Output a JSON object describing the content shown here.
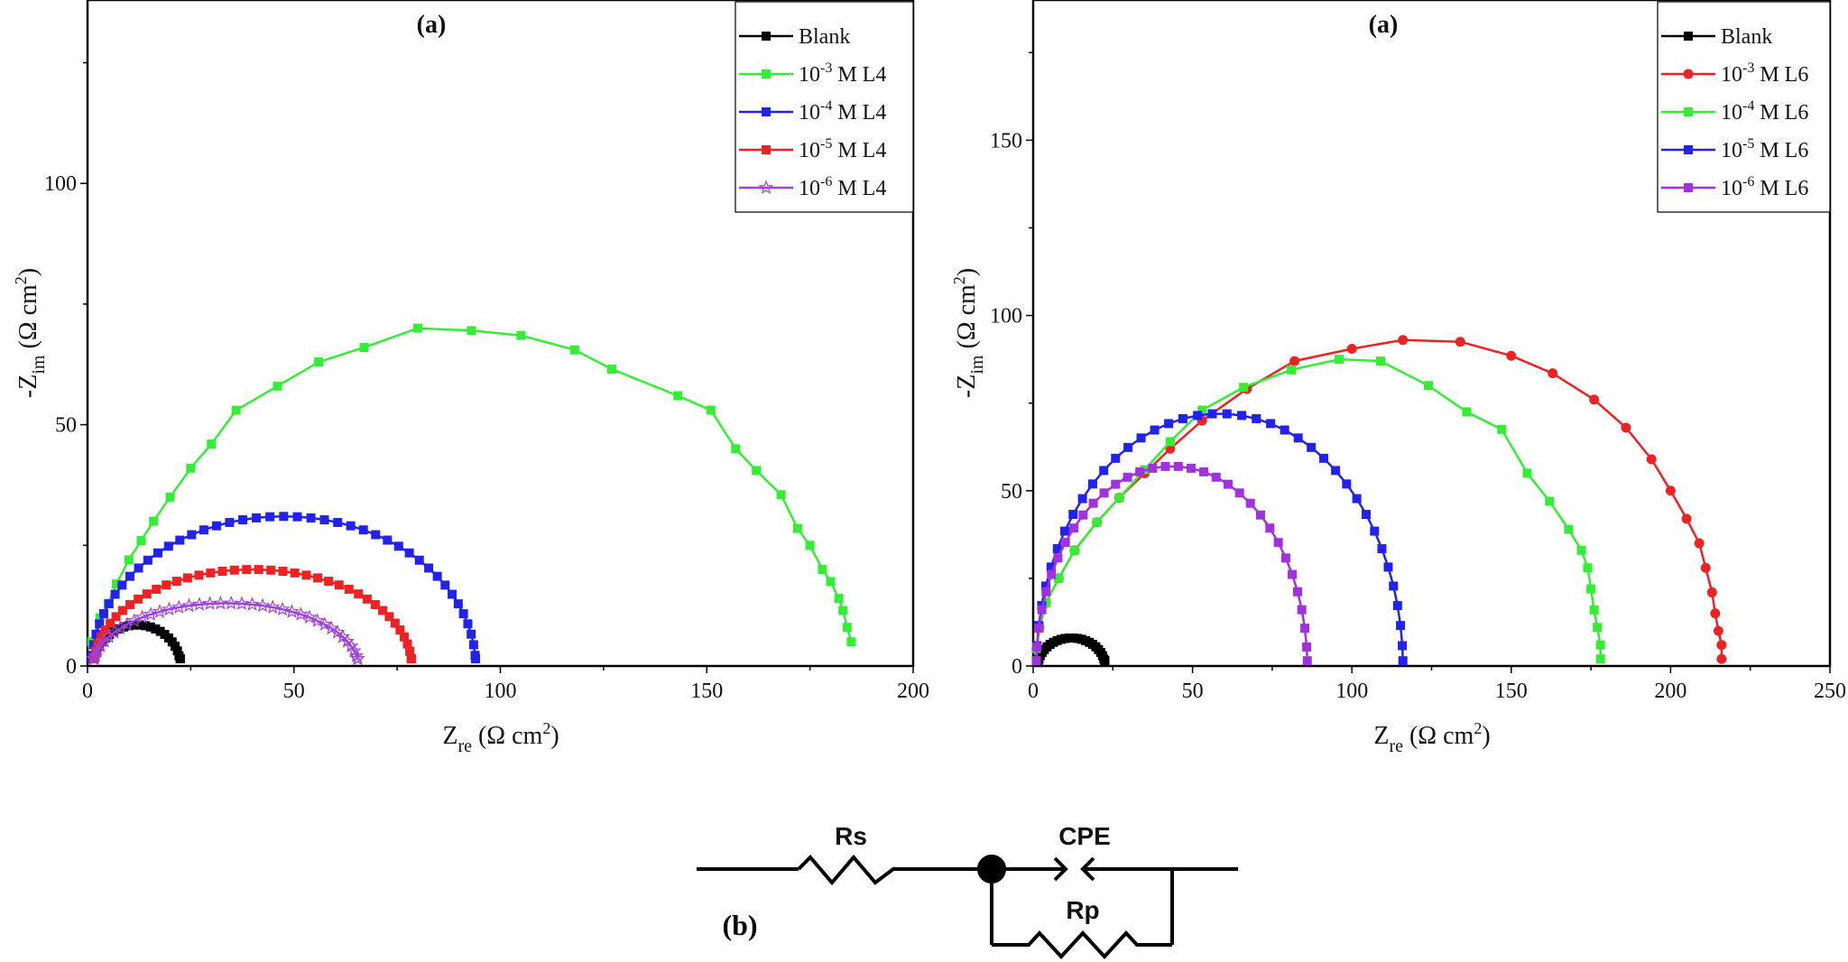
{
  "chart_data": [
    {
      "type": "line",
      "title": "(a)",
      "xlabel": "Z_re (Ω cm²)",
      "ylabel": "-Z_im (Ω cm²)",
      "xlim": [
        0,
        200
      ],
      "ylim": [
        0,
        138
      ],
      "xticks": [
        0,
        50,
        100,
        150,
        200
      ],
      "yticks": [
        0,
        50,
        100
      ],
      "legend_position": "top-right",
      "series": [
        {
          "name": "Blank",
          "color": "#000000",
          "marker": "square",
          "semicircle": {
            "x0": 1.5,
            "r": 10.5,
            "n": 26,
            "peak": 8.5
          }
        },
        {
          "name": "10⁻³ M L4",
          "color": "#33ee33",
          "marker": "square",
          "x": [
            1,
            3,
            5,
            7,
            10,
            13,
            16,
            20,
            25,
            30,
            36,
            46,
            56,
            67,
            80,
            93,
            105,
            118,
            127,
            143,
            151,
            157,
            162,
            168,
            172,
            175,
            178,
            180,
            182,
            183,
            184,
            185
          ],
          "y": [
            5,
            10,
            13,
            17,
            22,
            26,
            30,
            35,
            41,
            46,
            53,
            58,
            63,
            66,
            70,
            69.5,
            68.5,
            65.5,
            61.5,
            56,
            53,
            45,
            40.5,
            35.5,
            28.5,
            25,
            20,
            17.5,
            14,
            11.5,
            8,
            5
          ]
        },
        {
          "name": "10⁻⁴ M L4",
          "color": "#2222ee",
          "marker": "square",
          "semicircle": {
            "x0": 1,
            "r": 46.5,
            "n": 45,
            "peak": 31
          }
        },
        {
          "name": "10⁻⁵ M L4",
          "color": "#ee2222",
          "marker": "square",
          "semicircle": {
            "x0": 1.5,
            "r": 38.5,
            "n": 42,
            "peak": 20
          }
        },
        {
          "name": "10⁻⁶ M L4",
          "color": "#a040e0",
          "marker": "star",
          "semicircle": {
            "x0": 1.5,
            "r": 32,
            "n": 40,
            "peak": 13
          }
        }
      ]
    },
    {
      "type": "line",
      "title": "(a)",
      "xlabel": "Z_re (Ω cm²)",
      "ylabel": "-Z_im (Ω cm²)",
      "xlim": [
        0,
        250
      ],
      "ylim": [
        0,
        190
      ],
      "xticks": [
        0,
        50,
        100,
        150,
        200,
        250
      ],
      "yticks": [
        0,
        50,
        100,
        150
      ],
      "legend_position": "top-right",
      "series": [
        {
          "name": "Blank",
          "color": "#000000",
          "marker": "square",
          "semicircle": {
            "x0": 1.5,
            "r": 10.5,
            "n": 26,
            "peak": 8
          }
        },
        {
          "name": "10⁻³ M L6",
          "color": "#ee2222",
          "marker": "circle",
          "x": [
            1,
            2,
            4,
            8,
            13,
            20,
            27,
            35,
            43,
            53,
            67,
            82,
            100,
            116,
            134,
            150,
            163,
            176,
            186,
            194,
            200,
            205,
            209,
            211,
            213,
            214,
            215,
            216,
            216
          ],
          "y": [
            5,
            11,
            18,
            25,
            33,
            41,
            48,
            55,
            62,
            70,
            79,
            87,
            90.5,
            93,
            92.5,
            88.5,
            83.5,
            76,
            68,
            59,
            50,
            42,
            35,
            28,
            21,
            15,
            10,
            6,
            2
          ]
        },
        {
          "name": "10⁻⁴ M L6",
          "color": "#33ee33",
          "marker": "square",
          "x": [
            1,
            2,
            4,
            8,
            13,
            20,
            27,
            35,
            43,
            53,
            66,
            81,
            96,
            109,
            124,
            136,
            147,
            155,
            162,
            168,
            172,
            174,
            175,
            176,
            177,
            178,
            178
          ],
          "y": [
            5,
            11,
            18,
            25,
            33,
            41,
            48,
            56,
            64,
            73,
            79.5,
            84.5,
            87.5,
            87,
            80,
            72.5,
            67.5,
            55,
            47,
            39,
            33,
            28,
            22,
            16,
            11,
            6,
            2
          ]
        },
        {
          "name": "10⁻⁵ M L6",
          "color": "#2222ee",
          "marker": "square",
          "semicircle": {
            "x0": 1,
            "r": 57.5,
            "n": 40,
            "peak": 72
          }
        },
        {
          "name": "10⁻⁶ M L6",
          "color": "#a030e0",
          "marker": "square",
          "semicircle": {
            "x0": 1,
            "r": 42.5,
            "n": 34,
            "peak": 57
          }
        }
      ]
    }
  ],
  "circuit": {
    "label": "(b)",
    "rs": "Rs",
    "cpe": "CPE",
    "rp": "Rp"
  }
}
